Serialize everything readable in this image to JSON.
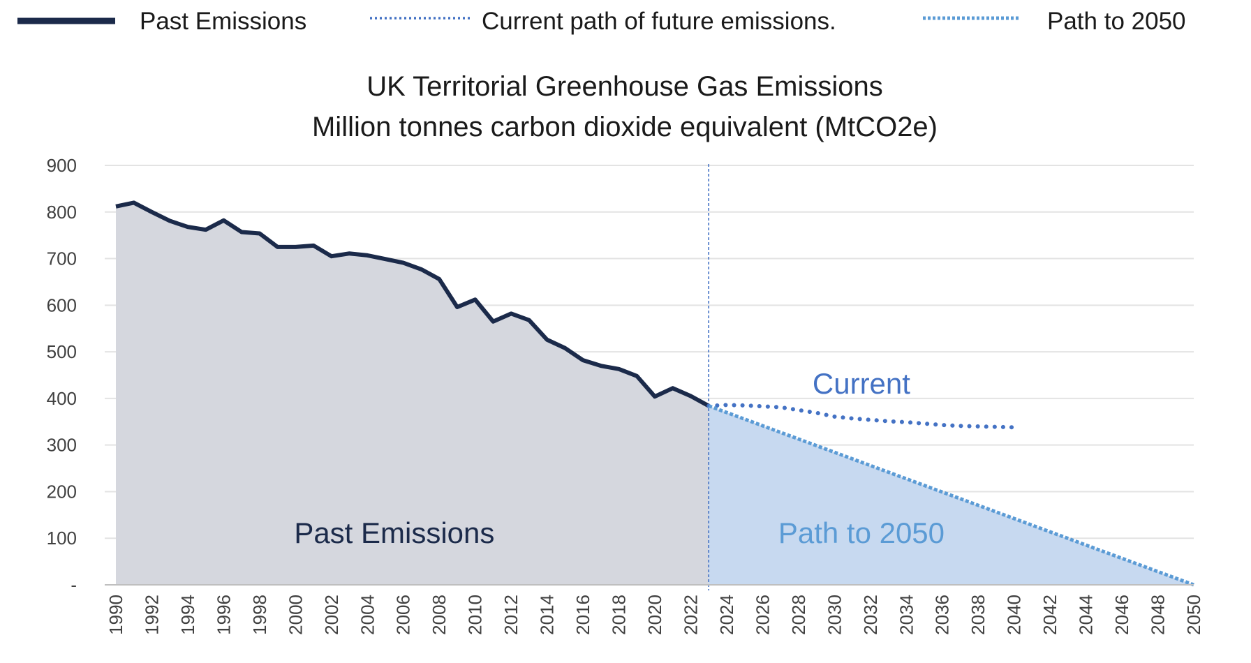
{
  "chart_data": {
    "type": "line",
    "title": "UK Territorial Greenhouse Gas Emissions",
    "subtitle": "Million tonnes carbon dioxide equivalent (MtCO2e)",
    "xlim": [
      1990,
      2050
    ],
    "ylim": [
      0,
      900
    ],
    "y_ticks": [
      {
        "value": 0,
        "label": "-"
      },
      {
        "value": 100,
        "label": "100"
      },
      {
        "value": 200,
        "label": "200"
      },
      {
        "value": 300,
        "label": "300"
      },
      {
        "value": 400,
        "label": "400"
      },
      {
        "value": 500,
        "label": "500"
      },
      {
        "value": 600,
        "label": "600"
      },
      {
        "value": 700,
        "label": "700"
      },
      {
        "value": 800,
        "label": "800"
      },
      {
        "value": 900,
        "label": "900"
      }
    ],
    "x_ticks": [
      "1990",
      "1992",
      "1994",
      "1996",
      "1998",
      "2000",
      "2002",
      "2004",
      "2006",
      "2008",
      "2010",
      "2012",
      "2014",
      "2016",
      "2018",
      "2020",
      "2022",
      "2024",
      "2026",
      "2028",
      "2030",
      "2032",
      "2034",
      "2036",
      "2038",
      "2040",
      "2042",
      "2044",
      "2046",
      "2048",
      "2050"
    ],
    "grid": true,
    "legend_position": "top",
    "legend": [
      {
        "label": "Past Emissions",
        "style": "solid",
        "color": "#1b2a4a"
      },
      {
        "label": "Current path of future emissions.",
        "style": "dotted",
        "color": "#4472c4"
      },
      {
        "label": "Path to 2050",
        "style": "dotted-thick",
        "color": "#5b9bd5"
      }
    ],
    "divider_year": 2023,
    "series": [
      {
        "name": "Past Emissions",
        "color": "#1b2a4a",
        "fill": "#d5d7de",
        "x": [
          1990,
          1991,
          1992,
          1993,
          1994,
          1995,
          1996,
          1997,
          1998,
          1999,
          2000,
          2001,
          2002,
          2003,
          2004,
          2005,
          2006,
          2007,
          2008,
          2009,
          2010,
          2011,
          2012,
          2013,
          2014,
          2015,
          2016,
          2017,
          2018,
          2019,
          2020,
          2021,
          2022,
          2023
        ],
        "values": [
          812,
          820,
          800,
          781,
          768,
          762,
          782,
          757,
          754,
          725,
          725,
          728,
          705,
          711,
          707,
          699,
          691,
          677,
          656,
          596,
          612,
          565,
          582,
          568,
          526,
          508,
          482,
          470,
          463,
          448,
          404,
          422,
          405,
          384
        ]
      },
      {
        "name": "Current path of future emissions.",
        "color": "#4472c4",
        "x": [
          2023,
          2024,
          2025,
          2026,
          2027,
          2028,
          2029,
          2030,
          2031,
          2032,
          2033,
          2034,
          2035,
          2036,
          2037,
          2038,
          2039,
          2040
        ],
        "values": [
          384,
          386,
          385,
          383,
          381,
          375,
          369,
          361,
          357,
          354,
          351,
          349,
          346,
          343,
          341,
          340,
          339,
          338
        ]
      },
      {
        "name": "Path to 2050",
        "color": "#5b9bd5",
        "fill": "#c7d9f0",
        "x": [
          2023,
          2050
        ],
        "values": [
          384,
          0
        ]
      }
    ],
    "annotations": [
      {
        "text": "Past Emissions",
        "x": 2005.5,
        "y": 90,
        "color": "#1b2a4a"
      },
      {
        "text": "Path to 2050",
        "x": 2031.5,
        "y": 90,
        "color": "#5b9bd5"
      },
      {
        "text": "Current",
        "x": 2031.5,
        "y": 410,
        "color": "#4472c4"
      }
    ]
  }
}
